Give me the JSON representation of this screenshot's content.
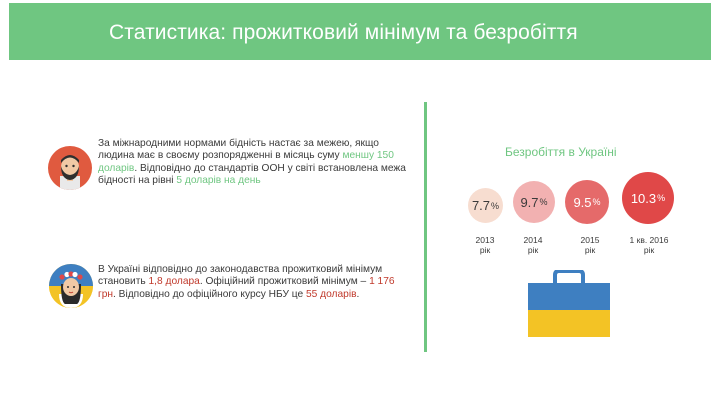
{
  "header": {
    "title": "Статистика: прожитковий мінімум та безробіття",
    "background": "#6fc681"
  },
  "left": {
    "block1": {
      "avatar_icon": "bearded-man-avatar-icon",
      "text_1": "За міжнародними нормами бідність настає за межею, якщо людина має в своєму розпорядженні в місяць суму ",
      "highlight_1": "меншу 150 доларів",
      "text_2": ". Відповідно до стандартів ООН у світі встановлена межа бідності на рівні ",
      "highlight_2": "5 доларів на день"
    },
    "block2": {
      "avatar_icon": "woman-in-wreath-avatar-icon",
      "text_1": "В Україні відповідно до законодавства прожитковий мінімум становить ",
      "highlight_1": "1,8 долара",
      "text_2": ". Офіційний прожитковий мінімум – ",
      "highlight_2": "1 176 грн",
      "text_3": ". Відповідно до офіційного курсу НБУ це ",
      "highlight_3": "55 доларів",
      "text_4": "."
    }
  },
  "right": {
    "title": "Безробіття в Україні",
    "unit": "%",
    "items": [
      {
        "value": "7.7",
        "year": "2013\nрік"
      },
      {
        "value": "9.7",
        "year": "2014\nрік"
      },
      {
        "value": "9.5",
        "year": "2015\nрік"
      },
      {
        "value": "10.3",
        "year": "1 кв. 2016\nрік"
      }
    ],
    "briefcase_icon": "ukraine-flag-briefcase-icon"
  },
  "colors": {
    "accent_green": "#6fc681",
    "accent_red": "#c0392b",
    "flag_blue": "#3e7fc1",
    "flag_yellow": "#f3c325"
  }
}
